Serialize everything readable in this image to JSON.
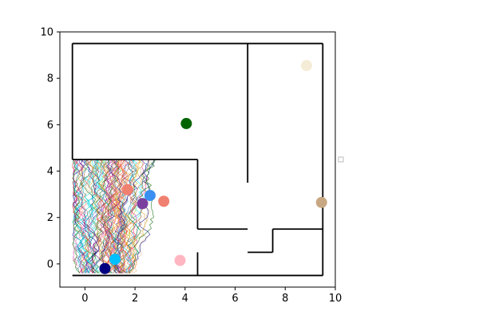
{
  "chart_data": {
    "type": "scatter",
    "title": "",
    "xlabel": "",
    "ylabel": "",
    "xlim": [
      -1,
      10
    ],
    "ylim": [
      -1,
      10
    ],
    "x_ticks": [
      0,
      2,
      4,
      6,
      8,
      10
    ],
    "y_ticks": [
      0,
      2,
      4,
      6,
      8,
      10
    ],
    "x_tick_labels": [
      "0",
      "2",
      "4",
      "6",
      "8",
      "10"
    ],
    "y_tick_labels": [
      "0",
      "2",
      "4",
      "6",
      "8",
      "10"
    ],
    "grid": false,
    "legend": "right (empty marker only)",
    "walls": [
      [
        [
          -0.5,
          9.5
        ],
        [
          9.5,
          9.5
        ]
      ],
      [
        [
          -0.5,
          9.5
        ],
        [
          -0.5,
          4.5
        ]
      ],
      [
        [
          -0.5,
          4.5
        ],
        [
          4.5,
          4.5
        ]
      ],
      [
        [
          4.5,
          4.5
        ],
        [
          4.5,
          1.5
        ]
      ],
      [
        [
          4.5,
          1.5
        ],
        [
          6.5,
          1.5
        ]
      ],
      [
        [
          6.5,
          9.5
        ],
        [
          6.5,
          3.5
        ]
      ],
      [
        [
          9.5,
          9.5
        ],
        [
          9.5,
          -0.5
        ]
      ],
      [
        [
          -0.5,
          -0.5
        ],
        [
          9.5,
          -0.5
        ]
      ],
      [
        [
          4.5,
          -0.5
        ],
        [
          4.5,
          0.5
        ]
      ],
      [
        [
          6.5,
          0.5
        ],
        [
          7.5,
          0.5
        ]
      ],
      [
        [
          7.5,
          0.5
        ],
        [
          7.5,
          1.5
        ]
      ],
      [
        [
          7.5,
          1.5
        ],
        [
          9.5,
          1.5
        ]
      ]
    ],
    "points": [
      {
        "x": 4.05,
        "y": 6.05,
        "color": "#006400"
      },
      {
        "x": 8.85,
        "y": 8.55,
        "color": "#f5ecd7"
      },
      {
        "x": 9.45,
        "y": 2.65,
        "color": "#c8a882"
      },
      {
        "x": 3.15,
        "y": 2.7,
        "color": "#f08070"
      },
      {
        "x": 2.6,
        "y": 2.95,
        "color": "#3a8ff0"
      },
      {
        "x": 3.8,
        "y": 0.15,
        "color": "#ffb6c1"
      },
      {
        "x": 2.3,
        "y": 2.6,
        "color": "#7b3fa0"
      },
      {
        "x": 1.7,
        "y": 3.2,
        "color": "#f08070"
      },
      {
        "x": 1.2,
        "y": 0.2,
        "color": "#00bfff"
      },
      {
        "x": 0.8,
        "y": -0.2,
        "color": "#000080"
      }
    ],
    "trajectories": {
      "region": {
        "x": [
          -0.5,
          3.2
        ],
        "y": [
          -0.5,
          4.5
        ]
      },
      "count": 90,
      "colors": [
        "#1f77b4",
        "#d62728",
        "#2ca02c",
        "#9467bd",
        "#ff7f0e",
        "#8c564b",
        "#e377c2",
        "#17becf",
        "#bcbd22",
        "#000080",
        "#006400",
        "#ff1493",
        "#00ced1",
        "#8b4513",
        "#daa520",
        "#ff6347",
        "#4b0082",
        "#deb887",
        "#fa8072",
        "#00ffff"
      ]
    }
  }
}
